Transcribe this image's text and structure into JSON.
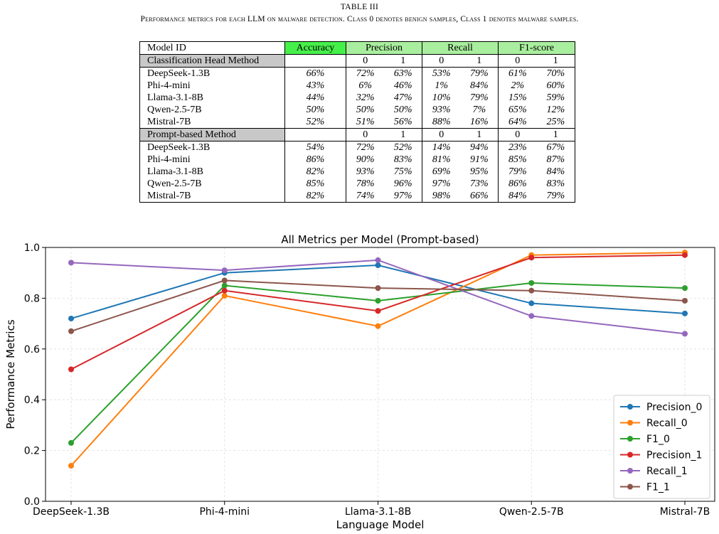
{
  "table": {
    "caption_title": "TABLE III",
    "caption_text": "Performance metrics for each LLM on malware detection. Class 0 denotes benign samples, Class 1 denotes malware samples.",
    "header": {
      "model_id": "Model ID",
      "accuracy": "Accuracy",
      "precision": "Precision",
      "recall": "Recall",
      "f1": "F1-score"
    },
    "class_labels": [
      "0",
      "1"
    ],
    "sections": [
      {
        "title": "Classification Head Method",
        "rows": [
          {
            "model": "DeepSeek-1.3B",
            "accuracy": "66%",
            "p0": "72%",
            "p1": "63%",
            "r0": "53%",
            "r1": "79%",
            "f0": "61%",
            "f1": "70%"
          },
          {
            "model": "Phi-4-mini",
            "accuracy": "43%",
            "p0": "6%",
            "p1": "46%",
            "r0": "1%",
            "r1": "84%",
            "f0": "2%",
            "f1": "60%"
          },
          {
            "model": "Llama-3.1-8B",
            "accuracy": "44%",
            "p0": "32%",
            "p1": "47%",
            "r0": "10%",
            "r1": "79%",
            "f0": "15%",
            "f1": "59%"
          },
          {
            "model": "Qwen-2.5-7B",
            "accuracy": "50%",
            "p0": "50%",
            "p1": "50%",
            "r0": "93%",
            "r1": "7%",
            "f0": "65%",
            "f1": "12%"
          },
          {
            "model": "Mistral-7B",
            "accuracy": "52%",
            "p0": "51%",
            "p1": "56%",
            "r0": "88%",
            "r1": "16%",
            "f0": "64%",
            "f1": "25%"
          }
        ]
      },
      {
        "title": "Prompt-based Method",
        "rows": [
          {
            "model": "DeepSeek-1.3B",
            "accuracy": "54%",
            "p0": "72%",
            "p1": "52%",
            "r0": "14%",
            "r1": "94%",
            "f0": "23%",
            "f1": "67%"
          },
          {
            "model": "Phi-4-mini",
            "accuracy": "86%",
            "p0": "90%",
            "p1": "83%",
            "r0": "81%",
            "r1": "91%",
            "f0": "85%",
            "f1": "87%"
          },
          {
            "model": "Llama-3.1-8B",
            "accuracy": "82%",
            "p0": "93%",
            "p1": "75%",
            "r0": "69%",
            "r1": "95%",
            "f0": "79%",
            "f1": "84%"
          },
          {
            "model": "Qwen-2.5-7B",
            "accuracy": "85%",
            "p0": "78%",
            "p1": "96%",
            "r0": "97%",
            "r1": "73%",
            "f0": "86%",
            "f1": "83%"
          },
          {
            "model": "Mistral-7B",
            "accuracy": "82%",
            "p0": "74%",
            "p1": "97%",
            "r0": "98%",
            "r1": "66%",
            "f0": "84%",
            "f1": "79%"
          }
        ]
      }
    ],
    "colors": {
      "green": "#46f04a",
      "light_green": "#a9ee9e",
      "gray": "#c8c8c8"
    }
  },
  "chart_data": {
    "type": "line",
    "title": "All Metrics per Model (Prompt-based)",
    "xlabel": "Language Model",
    "ylabel": "Performance Metrics",
    "categories": [
      "DeepSeek-1.3B",
      "Phi-4-mini",
      "Llama-3.1-8B",
      "Qwen-2.5-7B",
      "Mistral-7B"
    ],
    "ylim": [
      0.0,
      1.0
    ],
    "yticks": [
      "0.0",
      "0.2",
      "0.4",
      "0.6",
      "0.8",
      "1.0"
    ],
    "grid": true,
    "legend_position": "lower-right",
    "series": [
      {
        "name": "Precision_0",
        "color": "#1f77b4",
        "values": [
          0.72,
          0.9,
          0.93,
          0.78,
          0.74
        ]
      },
      {
        "name": "Recall_0",
        "color": "#ff7f0e",
        "values": [
          0.14,
          0.81,
          0.69,
          0.97,
          0.98
        ]
      },
      {
        "name": "F1_0",
        "color": "#2ca02c",
        "values": [
          0.23,
          0.85,
          0.79,
          0.86,
          0.84
        ]
      },
      {
        "name": "Precision_1",
        "color": "#d62728",
        "values": [
          0.52,
          0.83,
          0.75,
          0.96,
          0.97
        ]
      },
      {
        "name": "Recall_1",
        "color": "#9467bd",
        "values": [
          0.94,
          0.91,
          0.95,
          0.73,
          0.66
        ]
      },
      {
        "name": "F1_1",
        "color": "#8c564b",
        "values": [
          0.67,
          0.87,
          0.84,
          0.83,
          0.79
        ]
      }
    ]
  }
}
